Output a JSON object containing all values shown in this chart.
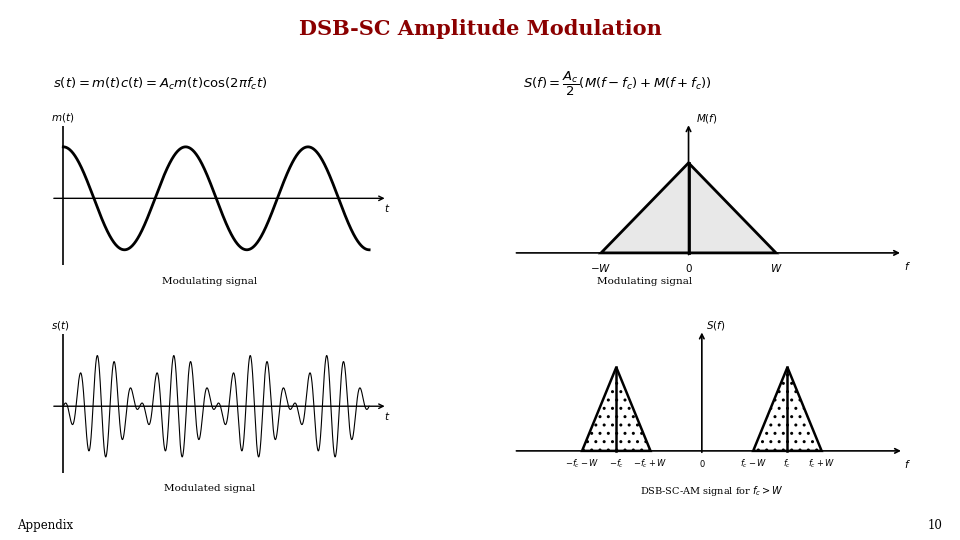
{
  "title": "DSB-SC Amplitude Modulation",
  "title_color": "#8B0000",
  "title_fontsize": 15,
  "bg_color": "#ffffff",
  "label_modulating_time": "Modulating signal",
  "label_modulating_freq": "Modulating signal",
  "label_modulated": "Modulated signal",
  "label_appendix": "Appendix",
  "label_page": "10",
  "label_dsb": "DSB-SC-AM signal for $f_c > W$"
}
